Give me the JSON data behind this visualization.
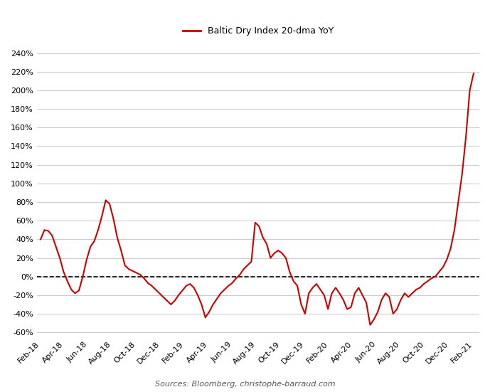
{
  "title": "Baltic Dry Index 20-dma YoY",
  "source_text": "Sources: Bloomberg, christophe-barraud.com",
  "line_color": "#cc0000",
  "dashed_color": "#000000",
  "background_color": "#ffffff",
  "grid_color": "#cccccc",
  "ylim": [
    -0.65,
    2.55
  ],
  "yticks": [
    -0.6,
    -0.4,
    -0.2,
    0.0,
    0.2,
    0.4,
    0.6,
    0.8,
    1.0,
    1.2,
    1.4,
    1.6,
    1.8,
    2.0,
    2.2,
    2.4
  ],
  "xtick_labels": [
    "Feb-18",
    "Apr-18",
    "Jun-18",
    "Aug-18",
    "Oct-18",
    "Dec-18",
    "Feb-19",
    "Apr-19",
    "Jun-19",
    "Aug-19",
    "Oct-19",
    "Dec-19",
    "Feb-20",
    "Apr-20",
    "Jun-20",
    "Aug-20",
    "Oct-20",
    "Dec-20",
    "Feb-21"
  ],
  "y_values": [
    0.4,
    0.5,
    0.49,
    0.44,
    0.32,
    0.2,
    0.05,
    -0.05,
    -0.14,
    -0.18,
    -0.15,
    0.0,
    0.18,
    0.32,
    0.38,
    0.5,
    0.65,
    0.82,
    0.78,
    0.62,
    0.42,
    0.28,
    0.12,
    0.08,
    0.06,
    0.04,
    0.02,
    -0.02,
    -0.07,
    -0.1,
    -0.14,
    -0.18,
    -0.22,
    -0.26,
    -0.3,
    -0.26,
    -0.2,
    -0.15,
    -0.1,
    -0.08,
    -0.12,
    -0.2,
    -0.3,
    -0.44,
    -0.38,
    -0.3,
    -0.24,
    -0.18,
    -0.14,
    -0.1,
    -0.07,
    -0.02,
    0.02,
    0.08,
    0.12,
    0.16,
    0.58,
    0.54,
    0.42,
    0.35,
    0.2,
    0.25,
    0.28,
    0.25,
    0.2,
    0.05,
    -0.05,
    -0.1,
    -0.3,
    -0.4,
    -0.18,
    -0.12,
    -0.08,
    -0.14,
    -0.2,
    -0.35,
    -0.18,
    -0.12,
    -0.18,
    -0.25,
    -0.35,
    -0.33,
    -0.18,
    -0.12,
    -0.2,
    -0.28,
    -0.52,
    -0.46,
    -0.38,
    -0.25,
    -0.18,
    -0.22,
    -0.4,
    -0.35,
    -0.25,
    -0.18,
    -0.22,
    -0.18,
    -0.14,
    -0.12,
    -0.08,
    -0.05,
    -0.02,
    0.0,
    0.05,
    0.1,
    0.18,
    0.3,
    0.5,
    0.8,
    1.1,
    1.5,
    2.0,
    2.18
  ]
}
